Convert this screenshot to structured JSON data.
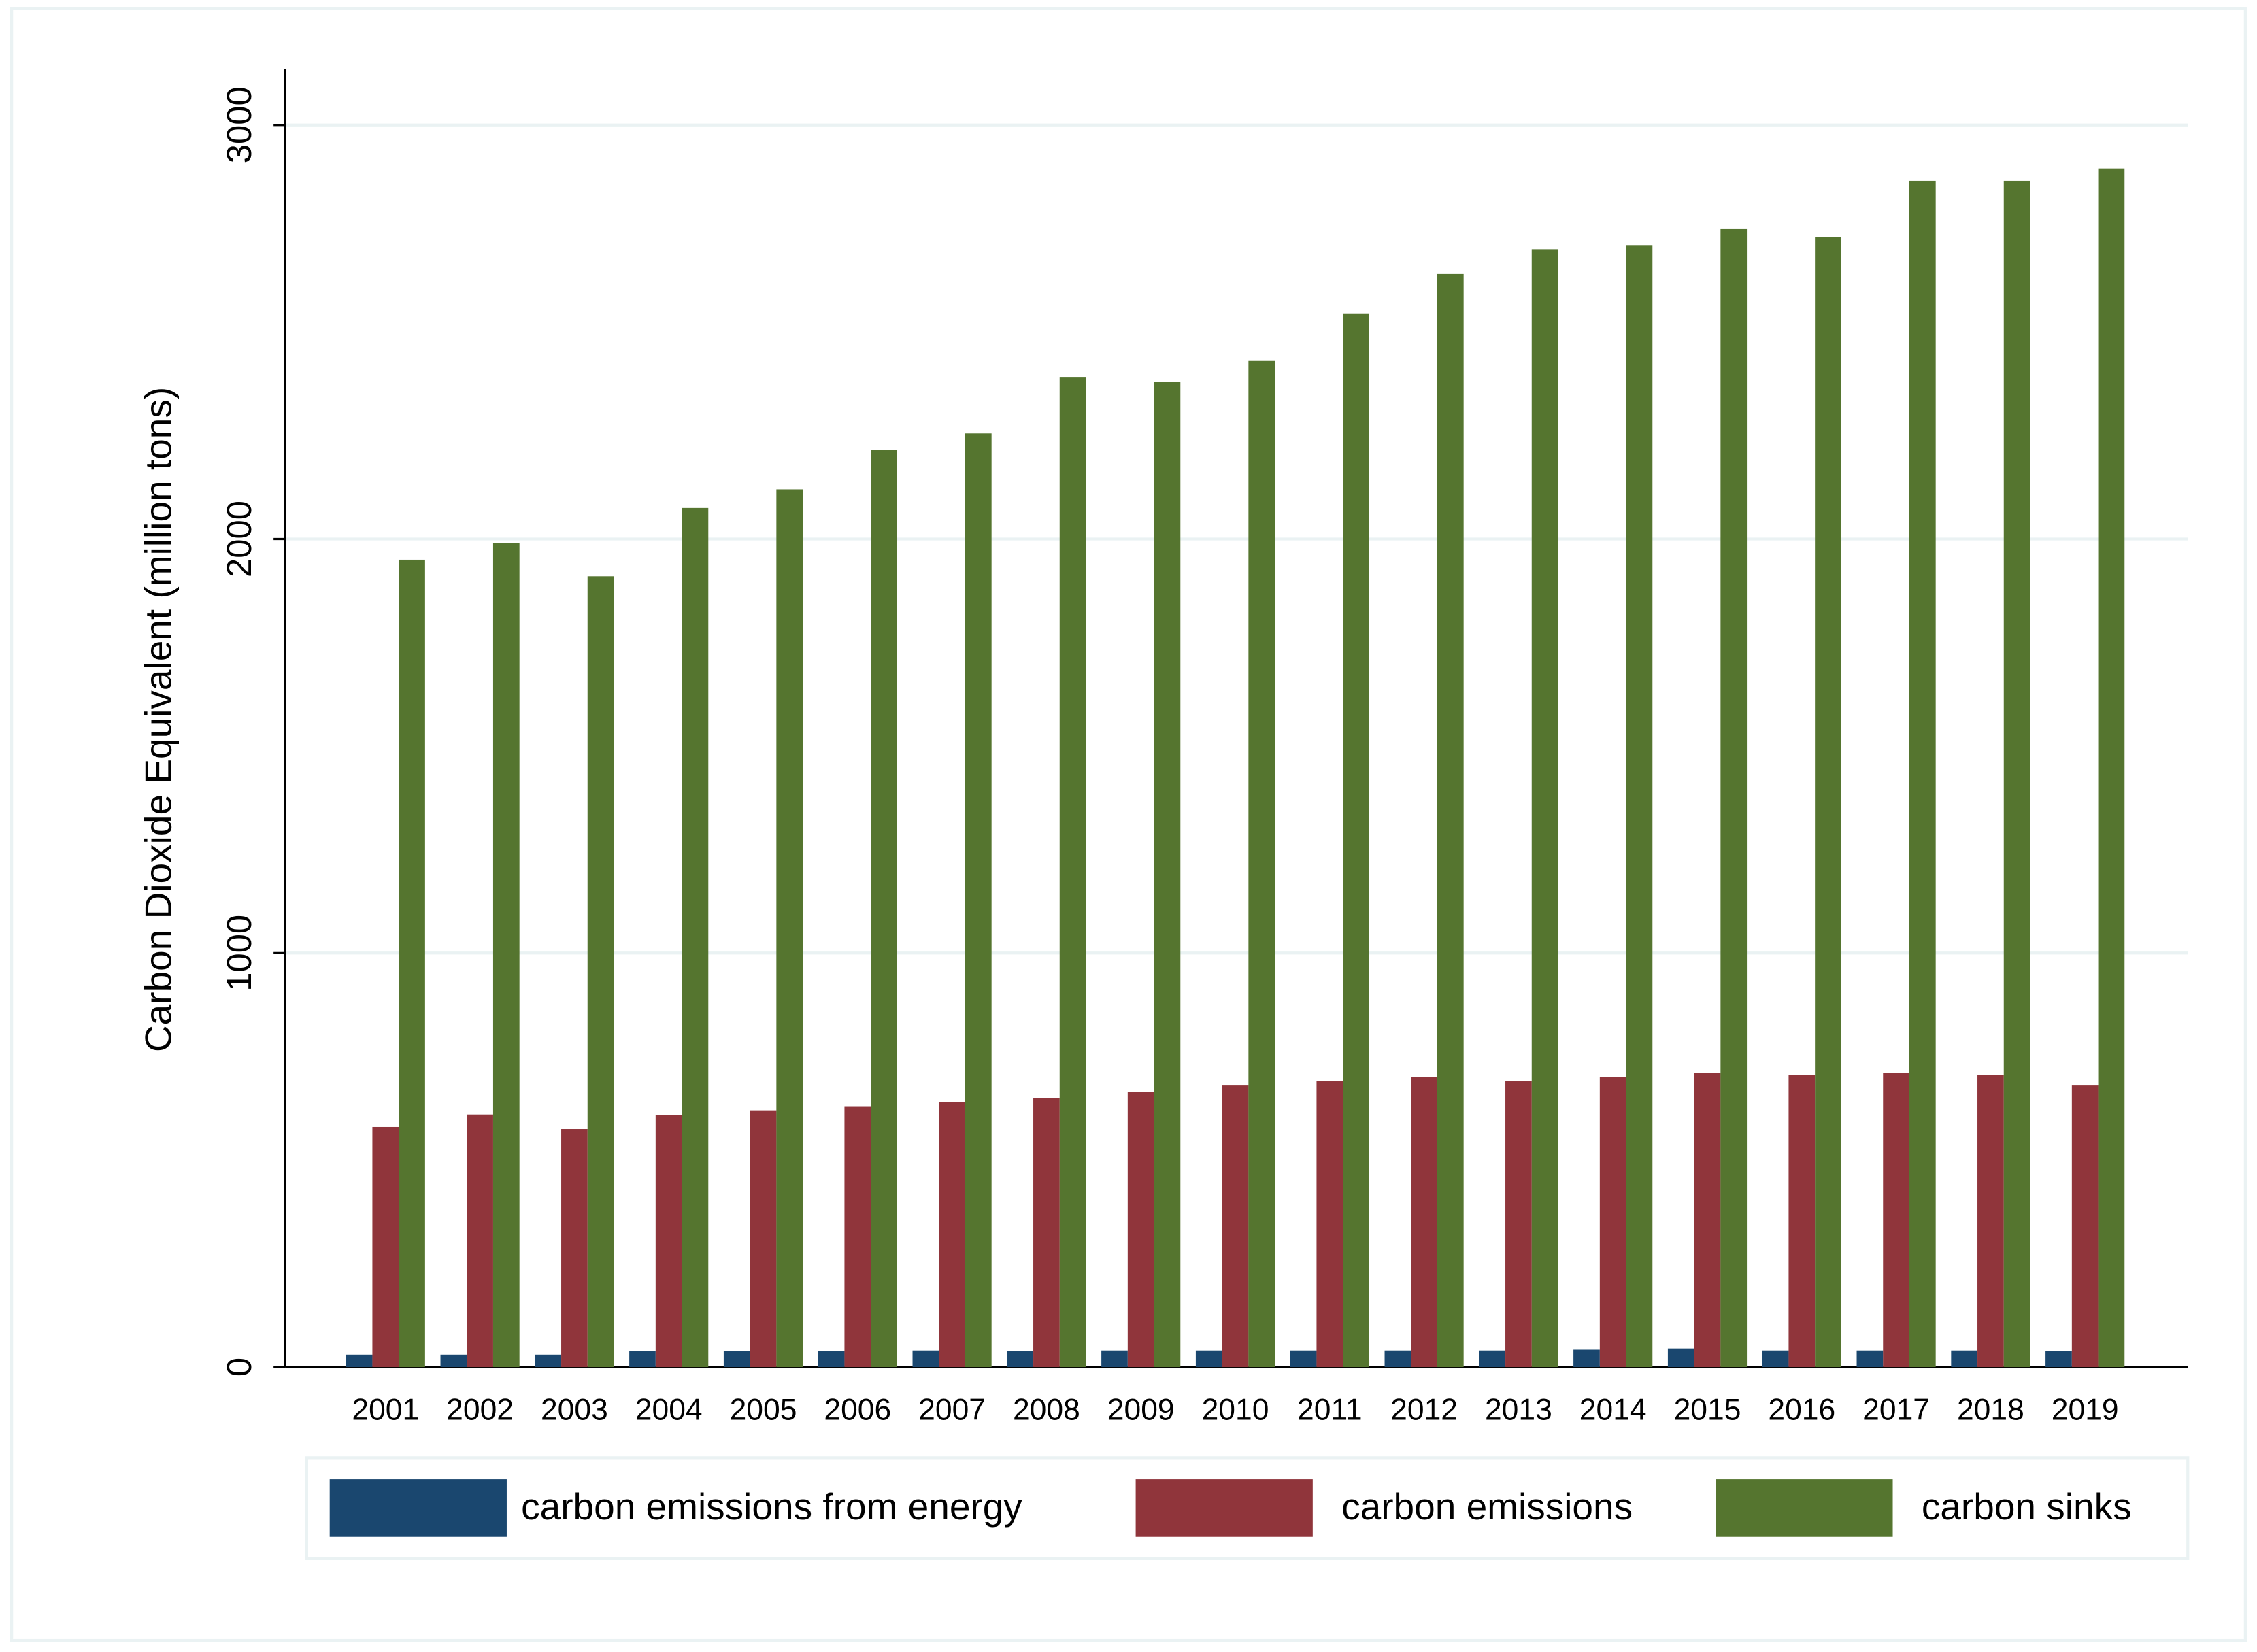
{
  "chart_data": {
    "type": "bar",
    "y_label": "Carbon Dioxide Equivalent (million tons)",
    "categories": [
      "2001",
      "2002",
      "2003",
      "2004",
      "2005",
      "2006",
      "2007",
      "2008",
      "2009",
      "2010",
      "2011",
      "2012",
      "2013",
      "2014",
      "2015",
      "2016",
      "2017",
      "2018",
      "2019"
    ],
    "series": [
      {
        "name": "carbon emissions from energy",
        "color": "#1a476f",
        "values": [
          30,
          30,
          30,
          38,
          38,
          38,
          40,
          38,
          40,
          40,
          40,
          40,
          40,
          42,
          45,
          40,
          40,
          40,
          38
        ]
      },
      {
        "name": "carbon emissions",
        "color": "#90353b",
        "values": [
          580,
          610,
          575,
          608,
          620,
          630,
          640,
          650,
          665,
          680,
          690,
          700,
          690,
          700,
          710,
          705,
          710,
          705,
          680
        ]
      },
      {
        "name": "carbon sinks",
        "color": "#55752f",
        "values": [
          1950,
          1990,
          1910,
          2075,
          2120,
          2215,
          2255,
          2390,
          2380,
          2430,
          2545,
          2640,
          2700,
          2710,
          2750,
          2730,
          2865,
          2865,
          2895
        ]
      }
    ],
    "ylim": [
      0,
      3135
    ],
    "yticks": [
      0,
      1000,
      2000,
      3000
    ],
    "grid": true
  }
}
